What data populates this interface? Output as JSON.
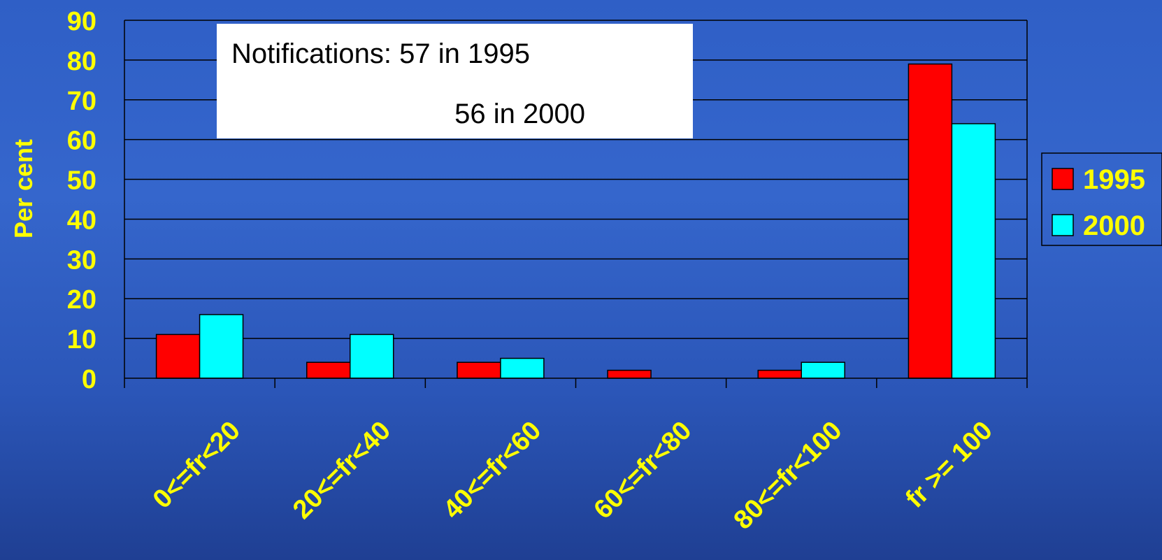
{
  "chart_data": {
    "type": "bar",
    "categories": [
      "0<=fr<20",
      "20<=fr<40",
      "40<=fr<60",
      "60<=fr<80",
      "80<=fr<100",
      "fr >= 100"
    ],
    "series": [
      {
        "name": "1995",
        "values": [
          11,
          4,
          4,
          2,
          2,
          79
        ]
      },
      {
        "name": "2000",
        "values": [
          16,
          11,
          5,
          0,
          4,
          64
        ]
      }
    ],
    "title": "",
    "xlabel": "",
    "ylabel": "Per cent",
    "ylim": [
      0,
      90
    ],
    "yticks": [
      0,
      10,
      20,
      30,
      40,
      50,
      60,
      70,
      80,
      90
    ],
    "grid": true,
    "legend_position": "right",
    "annotation": {
      "line1": "Notifications: 57 in 1995",
      "line2": "56 in 2000"
    },
    "colors": {
      "series": [
        "#ff0000",
        "#00ffff"
      ],
      "text": "#ffff00",
      "gridline": "#000000",
      "annotation_bg": "#ffffff",
      "annotation_text": "#000000"
    }
  }
}
